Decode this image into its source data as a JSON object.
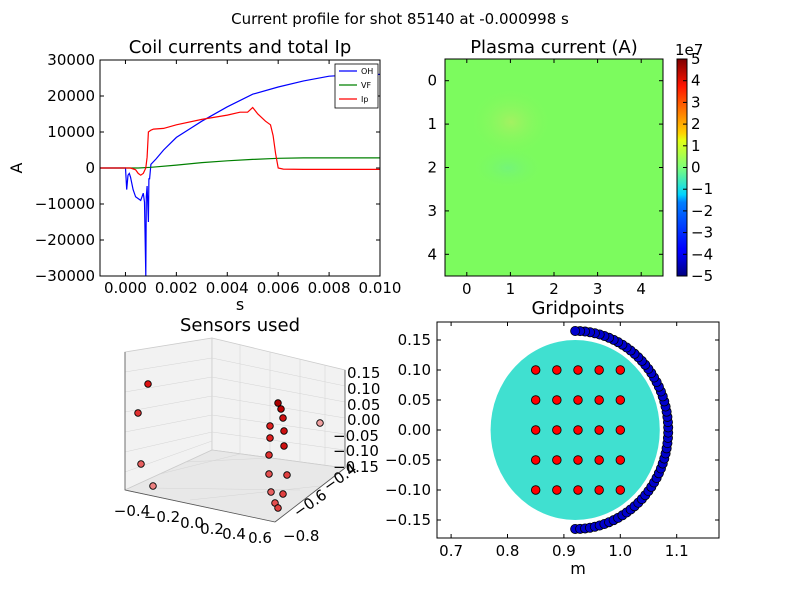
{
  "figure": {
    "suptitle": "Current profile for shot 85140 at -0.000998 s"
  },
  "chart_data": [
    {
      "type": "line",
      "title": "Coil currents and total Ip",
      "xlabel": "s",
      "ylabel": "A",
      "xlim": [
        -0.001,
        0.01
      ],
      "ylim": [
        -30000,
        30000
      ],
      "xticks": [
        0.0,
        0.002,
        0.004,
        0.006,
        0.008,
        0.01
      ],
      "xtick_labels": [
        "0.000",
        "0.002",
        "0.004",
        "0.006",
        "0.008",
        "0.010"
      ],
      "yticks": [
        -30000,
        -20000,
        -10000,
        0,
        10000,
        20000,
        30000
      ],
      "ytick_labels": [
        "−30000",
        "−20000",
        "−10000",
        "0",
        "10000",
        "20000",
        "30000"
      ],
      "legend": "top-right",
      "series": [
        {
          "name": "OH",
          "color": "#0000ff",
          "x": [
            -0.001,
            0.0,
            5e-05,
            0.0001,
            0.00015,
            0.0002,
            0.0003,
            0.0004,
            0.0005,
            0.0006,
            0.00065,
            0.0007,
            0.00075,
            0.0008,
            0.00082,
            0.00085,
            0.0009,
            0.00092,
            0.00095,
            0.001,
            0.0012,
            0.0015,
            0.002,
            0.003,
            0.004,
            0.005,
            0.006,
            0.007,
            0.008,
            0.009,
            0.01
          ],
          "y": [
            0,
            0,
            -6000,
            -2000,
            -1500,
            -2500,
            -6000,
            -8000,
            -8500,
            -9000,
            -8000,
            -7000,
            -9500,
            -30000,
            -8000,
            -5000,
            -15000,
            -3000,
            -3000,
            1000,
            2500,
            5000,
            8500,
            13000,
            17000,
            20500,
            22500,
            24200,
            25500,
            25900,
            26000
          ]
        },
        {
          "name": "VF",
          "color": "#008000",
          "x": [
            -0.001,
            0.0,
            0.0005,
            0.001,
            0.002,
            0.003,
            0.004,
            0.005,
            0.006,
            0.007,
            0.008,
            0.009,
            0.01
          ],
          "y": [
            0,
            0,
            0,
            200,
            800,
            1500,
            2000,
            2400,
            2700,
            2800,
            2800,
            2800,
            2800
          ]
        },
        {
          "name": "Ip",
          "color": "#ff0000",
          "x": [
            -0.001,
            0.0,
            0.0002,
            0.0004,
            0.0005,
            0.0006,
            0.0007,
            0.0008,
            0.00085,
            0.0009,
            0.001,
            0.0011,
            0.0015,
            0.002,
            0.003,
            0.004,
            0.0045,
            0.0048,
            0.005,
            0.0052,
            0.0055,
            0.0057,
            0.0058,
            0.0059,
            0.006,
            0.0062,
            0.007,
            0.008,
            0.009,
            0.01
          ],
          "y": [
            0,
            0,
            0,
            -500,
            -1500,
            -2000,
            -1500,
            0,
            3000,
            10000,
            10500,
            10800,
            11000,
            12000,
            13500,
            14700,
            15500,
            15500,
            16800,
            15000,
            13000,
            12000,
            9000,
            4000,
            0,
            -300,
            -400,
            -400,
            -400,
            -400
          ]
        }
      ]
    },
    {
      "type": "heatmap",
      "title": "Plasma current (A)",
      "xlim": [
        -0.5,
        4.5
      ],
      "ylim": [
        4.5,
        -0.5
      ],
      "xticks": [
        0,
        1,
        2,
        3,
        4
      ],
      "yticks": [
        0,
        1,
        2,
        3,
        4
      ],
      "colorbar": {
        "ticks": [
          5,
          4,
          3,
          2,
          1,
          0,
          -1,
          -2,
          -3,
          -4,
          -5
        ],
        "tick_labels": [
          "5",
          "4",
          "3",
          "2",
          "1",
          "0",
          "−1",
          "−2",
          "−3",
          "−4",
          "−5"
        ],
        "multiplier": "1e7"
      },
      "values": [
        [
          0.02,
          0.05,
          0.03,
          0.0,
          0.0
        ],
        [
          0.05,
          0.2,
          0.08,
          0.0,
          0.0
        ],
        [
          0.0,
          -0.05,
          0.0,
          0.0,
          0.0
        ],
        [
          0.0,
          0.0,
          0.0,
          0.0,
          0.0
        ],
        [
          0.0,
          0.0,
          0.0,
          0.0,
          0.0
        ]
      ]
    },
    {
      "type": "scatter",
      "title": "Sensors used",
      "x_tick_labels": [
        "−0.4",
        "−0.2",
        "0.0",
        "0.2",
        "0.4",
        "0.6"
      ],
      "y_tick_labels": [
        "−0.8",
        "−0.6",
        "−0.4"
      ],
      "z_tick_labels": [
        "0.15",
        "0.10",
        "0.05",
        "0.00",
        "−0.05",
        "−0.10",
        "−0.15"
      ],
      "marker_color": "#dd1111"
    },
    {
      "type": "scatter",
      "title": "Gridpoints",
      "xlabel": "m",
      "xlim": [
        0.675,
        1.175
      ],
      "ylim": [
        -0.18,
        0.18
      ],
      "xticks": [
        0.7,
        0.8,
        0.9,
        1.0,
        1.1
      ],
      "xtick_labels": [
        "0.7",
        "0.8",
        "0.9",
        "1.0",
        "1.1"
      ],
      "yticks": [
        -0.15,
        -0.1,
        -0.05,
        0.0,
        0.05,
        0.1,
        0.15
      ],
      "ytick_labels": [
        "−0.15",
        "−0.10",
        "−0.05",
        "0.00",
        "0.05",
        "0.10",
        "0.15"
      ],
      "plasma": {
        "center": [
          0.92,
          0.0
        ],
        "radius": 0.15,
        "color": "#40e0d0"
      },
      "grid_points": {
        "x": [
          0.85,
          0.8875,
          0.925,
          0.9625,
          1.0
        ],
        "y": [
          0.1,
          0.05,
          0.0,
          -0.05,
          -0.1
        ],
        "color": "#ff0000"
      },
      "sensor_arc": {
        "center": [
          0.92,
          0.0
        ],
        "radius": 0.165,
        "angle_start": -90,
        "angle_end": 90,
        "count": 60,
        "color": "#0000cc"
      }
    }
  ]
}
